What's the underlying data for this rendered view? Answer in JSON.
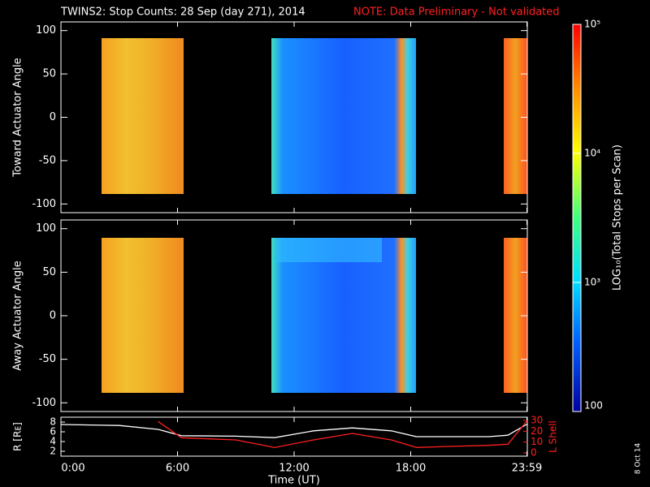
{
  "title": "TWINS2: Stop Counts: 28 Sep (day 271), 2014",
  "note": "NOTE: Data Preliminary - Not validated",
  "stamp": "8 Oct 14",
  "colorbar": {
    "label": "LOG₁₀(Total Stops per Scan)",
    "log": true,
    "lim": [
      100,
      100000
    ],
    "ticks": [
      {
        "value": 100000,
        "label": "10⁵"
      },
      {
        "value": 10000,
        "label": "10⁴"
      },
      {
        "value": 1000,
        "label": "10³"
      },
      100
    ]
  },
  "chart_data": [
    {
      "type": "heatmap",
      "ylabel": "Toward Actuator Angle",
      "xlim": [
        0,
        24
      ],
      "ylim": [
        -110,
        110
      ],
      "yticks": [
        -100,
        -50,
        0,
        50,
        100
      ]
    },
    {
      "type": "heatmap",
      "ylabel": "Away Actuator Angle",
      "xlim": [
        0,
        24
      ],
      "ylim": [
        -110,
        110
      ],
      "yticks": [
        -100,
        -50,
        0,
        50,
        100
      ]
    },
    {
      "type": "line",
      "xlabel": "Time (UT)",
      "ylabel": "R [Rᴇ]",
      "y2label": "L Shell",
      "xlim": [
        0,
        24
      ],
      "xticks": [
        {
          "value": 0,
          "label": "0:00"
        },
        {
          "value": 6,
          "label": "6:00"
        },
        {
          "value": 12,
          "label": "12:00"
        },
        {
          "value": 18,
          "label": "18:00"
        },
        {
          "value": 23.98,
          "label": "23:59"
        }
      ],
      "ylim": [
        1,
        9
      ],
      "yticks": [
        2,
        4,
        6,
        8
      ],
      "y2lim": [
        -3,
        33
      ],
      "y2ticks": [
        0,
        10,
        20,
        30
      ],
      "x": [
        0,
        3,
        5,
        6.2,
        9,
        11,
        13,
        15,
        17,
        18.3,
        20,
        22,
        23,
        24
      ],
      "series": [
        {
          "name": "R",
          "color": "#ffffff",
          "values": [
            7.5,
            7.3,
            6.5,
            5.2,
            5.1,
            4.8,
            6.2,
            6.8,
            6.2,
            5,
            5,
            5,
            5.3,
            7.6
          ]
        },
        {
          "name": "L Shell",
          "color": "#ff2020",
          "axis": "y2",
          "values": [
            null,
            null,
            29,
            14,
            12,
            5,
            12,
            18,
            12,
            5,
            6,
            7,
            8,
            30
          ]
        }
      ]
    }
  ]
}
